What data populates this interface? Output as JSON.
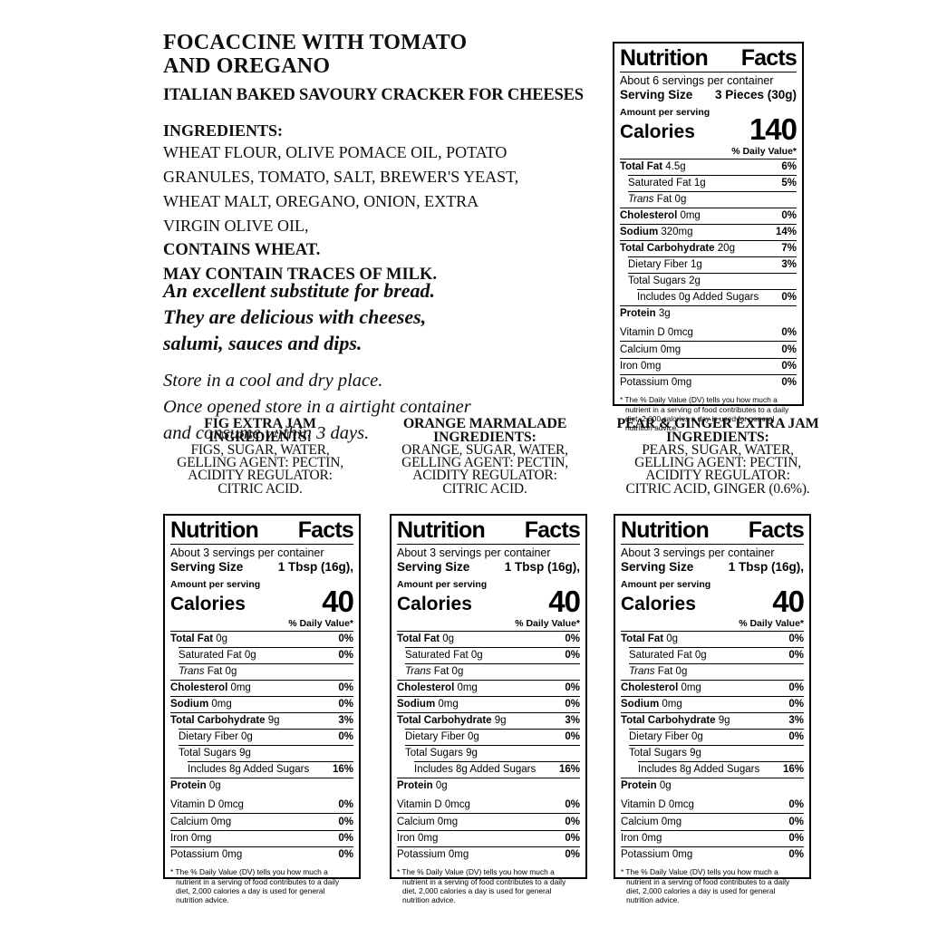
{
  "page": {
    "background": "#ffffff",
    "ink": "#000000"
  },
  "product": {
    "title_line1": "FOCACCINE WITH TOMATO",
    "title_line2": "AND OREGANO",
    "subtitle": "ITALIAN BAKED SAVOURY CRACKER FOR CHEESES",
    "ingredients_heading": "INGREDIENTS:",
    "ingredients_lines": [
      "WHEAT FLOUR, OLIVE POMACE OIL, POTATO",
      "GRANULES, TOMATO, SALT, BREWER'S YEAST,",
      "WHEAT MALT, OREGANO, ONION, EXTRA",
      "VIRGIN OLIVE OIL,"
    ],
    "allergen_line1": "CONTAINS WHEAT.",
    "allergen_line2": "MAY CONTAIN TRACES OF MILK."
  },
  "marketing": {
    "bold_lines": [
      "An excellent substitute for bread.",
      "They are delicious with cheeses,",
      "salumi, sauces and dips."
    ],
    "plain_lines": [
      "Store in a cool  and dry place.",
      "Once opened store in a airtight container",
      "and consume within 3 days."
    ]
  },
  "jams": [
    {
      "name": "FIG EXTRA JAM",
      "heading": "INGREDIENTS:",
      "lines": [
        "FIGS, SUGAR, WATER,",
        "GELLING AGENT: PECTIN,",
        "ACIDITY REGULATOR:",
        "CITRIC ACID."
      ]
    },
    {
      "name": "ORANGE MARMALADE",
      "heading": "INGREDIENTS:",
      "lines": [
        "ORANGE, SUGAR, WATER,",
        "GELLING AGENT: PECTIN,",
        "ACIDITY REGULATOR:",
        "CITRIC ACID."
      ]
    },
    {
      "name": "PEAR & GINGER EXTRA JAM",
      "heading": "INGREDIENTS:",
      "lines": [
        "PEARS, SUGAR, WATER,",
        "GELLING AGENT: PECTIN,",
        "ACIDITY REGULATOR:",
        "CITRIC ACID, GINGER (0.6%)."
      ]
    }
  ],
  "nutrition_panels": [
    {
      "product": "focaccine",
      "title": "Nutrition Facts",
      "servings": "About 6 servings per container",
      "serving_size_label": "Serving Size",
      "serving_size_value": "3 Pieces (30g)",
      "amount_per_serving": "Amount per serving",
      "calories_label": "Calories",
      "calories": "140",
      "daily_value_header": "% Daily Value*",
      "rows": [
        {
          "label": "Total Fat",
          "value": "4.5g",
          "dv": "6%",
          "em": "bold",
          "indent": 0
        },
        {
          "label": "Saturated Fat",
          "value": "1g",
          "dv": "5%",
          "em": "none",
          "indent": 1
        },
        {
          "label": "Trans Fat",
          "value": "0g",
          "dv": "",
          "em": "italic",
          "indent": 1
        },
        {
          "label": "Cholesterol",
          "value": "0mg",
          "dv": "0%",
          "em": "bold",
          "indent": 0
        },
        {
          "label": "Sodium",
          "value": "320mg",
          "dv": "14%",
          "em": "bold",
          "indent": 0
        },
        {
          "label": "Total Carbohydrate",
          "value": "20g",
          "dv": "7%",
          "em": "bold",
          "indent": 0
        },
        {
          "label": "Dietary Fiber",
          "value": "1g",
          "dv": "3%",
          "em": "none",
          "indent": 1
        },
        {
          "label": "Total Sugars",
          "value": "2g",
          "dv": "",
          "em": "none",
          "indent": 1
        },
        {
          "label": "Includes 0g Added Sugars",
          "value": "",
          "dv": "0%",
          "em": "none",
          "indent": 2
        },
        {
          "label": "Protein",
          "value": "3g",
          "dv": "",
          "em": "bold",
          "indent": 0
        }
      ],
      "vitamins": [
        {
          "label": "Vitamin D 0mcg",
          "dv": "0%"
        },
        {
          "label": "Calcium 0mg",
          "dv": "0%"
        },
        {
          "label": "Iron 0mg",
          "dv": "0%"
        },
        {
          "label": "Potassium 0mg",
          "dv": "0%"
        }
      ],
      "footnote": "* The %  Daily Value (DV) tells you how much a nutrient in a serving of food contributes to a daily diet, 2,000 calories a day is used for general nutrition advice."
    },
    {
      "product": "fig-extra-jam",
      "title": "Nutrition Facts",
      "servings": "About 3 servings per container",
      "serving_size_label": "Serving Size",
      "serving_size_value": "1 Tbsp (16g),",
      "amount_per_serving": "Amount per serving",
      "calories_label": "Calories",
      "calories": "40",
      "daily_value_header": "% Daily Value*",
      "rows": [
        {
          "label": "Total Fat",
          "value": "0g",
          "dv": "0%",
          "em": "bold",
          "indent": 0
        },
        {
          "label": "Saturated Fat",
          "value": "0g",
          "dv": "0%",
          "em": "none",
          "indent": 1
        },
        {
          "label": "Trans Fat",
          "value": "0g",
          "dv": "",
          "em": "italic",
          "indent": 1
        },
        {
          "label": "Cholesterol",
          "value": "0mg",
          "dv": "0%",
          "em": "bold",
          "indent": 0
        },
        {
          "label": "Sodium",
          "value": "0mg",
          "dv": "0%",
          "em": "bold",
          "indent": 0
        },
        {
          "label": "Total Carbohydrate",
          "value": "9g",
          "dv": "3%",
          "em": "bold",
          "indent": 0
        },
        {
          "label": "Dietary Fiber",
          "value": "0g",
          "dv": "0%",
          "em": "none",
          "indent": 1
        },
        {
          "label": "Total Sugars",
          "value": "9g",
          "dv": "",
          "em": "none",
          "indent": 1
        },
        {
          "label": "Includes 8g Added Sugars",
          "value": "",
          "dv": "16%",
          "em": "none",
          "indent": 2
        },
        {
          "label": "Protein",
          "value": "0g",
          "dv": "",
          "em": "bold",
          "indent": 0
        }
      ],
      "vitamins": [
        {
          "label": "Vitamin D 0mcg",
          "dv": "0%"
        },
        {
          "label": "Calcium 0mg",
          "dv": "0%"
        },
        {
          "label": "Iron 0mg",
          "dv": "0%"
        },
        {
          "label": "Potassium 0mg",
          "dv": "0%"
        }
      ],
      "footnote": "* The %  Daily Value (DV) tells you how much a nutrient in a serving of food contributes to a daily diet, 2,000 calories a day is used for general nutrition advice."
    },
    {
      "product": "orange-marmalade",
      "title": "Nutrition Facts",
      "servings": "About 3 servings per container",
      "serving_size_label": "Serving Size",
      "serving_size_value": "1 Tbsp (16g),",
      "amount_per_serving": "Amount per serving",
      "calories_label": "Calories",
      "calories": "40",
      "daily_value_header": "% Daily Value*",
      "rows": [
        {
          "label": "Total Fat",
          "value": "0g",
          "dv": "0%",
          "em": "bold",
          "indent": 0
        },
        {
          "label": "Saturated Fat",
          "value": "0g",
          "dv": "0%",
          "em": "none",
          "indent": 1
        },
        {
          "label": "Trans Fat",
          "value": "0g",
          "dv": "",
          "em": "italic",
          "indent": 1
        },
        {
          "label": "Cholesterol",
          "value": "0mg",
          "dv": "0%",
          "em": "bold",
          "indent": 0
        },
        {
          "label": "Sodium",
          "value": "0mg",
          "dv": "0%",
          "em": "bold",
          "indent": 0
        },
        {
          "label": "Total Carbohydrate",
          "value": "9g",
          "dv": "3%",
          "em": "bold",
          "indent": 0
        },
        {
          "label": "Dietary Fiber",
          "value": "0g",
          "dv": "0%",
          "em": "none",
          "indent": 1
        },
        {
          "label": "Total Sugars",
          "value": "9g",
          "dv": "",
          "em": "none",
          "indent": 1
        },
        {
          "label": "Includes 8g Added Sugars",
          "value": "",
          "dv": "16%",
          "em": "none",
          "indent": 2
        },
        {
          "label": "Protein",
          "value": "0g",
          "dv": "",
          "em": "bold",
          "indent": 0
        }
      ],
      "vitamins": [
        {
          "label": "Vitamin D 0mcg",
          "dv": "0%"
        },
        {
          "label": "Calcium 0mg",
          "dv": "0%"
        },
        {
          "label": "Iron 0mg",
          "dv": "0%"
        },
        {
          "label": "Potassium 0mg",
          "dv": "0%"
        }
      ],
      "footnote": "* The %  Daily Value (DV) tells you how much a nutrient in a serving of food contributes to a daily diet, 2,000 calories a day is used for general nutrition advice."
    },
    {
      "product": "pear-ginger-extra-jam",
      "title": "Nutrition Facts",
      "servings": "About 3 servings per container",
      "serving_size_label": "Serving Size",
      "serving_size_value": "1 Tbsp (16g),",
      "amount_per_serving": "Amount per serving",
      "calories_label": "Calories",
      "calories": "40",
      "daily_value_header": "% Daily Value*",
      "rows": [
        {
          "label": "Total Fat",
          "value": "0g",
          "dv": "0%",
          "em": "bold",
          "indent": 0
        },
        {
          "label": "Saturated Fat",
          "value": "0g",
          "dv": "0%",
          "em": "none",
          "indent": 1
        },
        {
          "label": "Trans Fat",
          "value": "0g",
          "dv": "",
          "em": "italic",
          "indent": 1
        },
        {
          "label": "Cholesterol",
          "value": "0mg",
          "dv": "0%",
          "em": "bold",
          "indent": 0
        },
        {
          "label": "Sodium",
          "value": "0mg",
          "dv": "0%",
          "em": "bold",
          "indent": 0
        },
        {
          "label": "Total Carbohydrate",
          "value": "9g",
          "dv": "3%",
          "em": "bold",
          "indent": 0
        },
        {
          "label": "Dietary Fiber",
          "value": "0g",
          "dv": "0%",
          "em": "none",
          "indent": 1
        },
        {
          "label": "Total Sugars",
          "value": "9g",
          "dv": "",
          "em": "none",
          "indent": 1
        },
        {
          "label": "Includes 8g Added Sugars",
          "value": "",
          "dv": "16%",
          "em": "none",
          "indent": 2
        },
        {
          "label": "Protein",
          "value": "0g",
          "dv": "",
          "em": "bold",
          "indent": 0
        }
      ],
      "vitamins": [
        {
          "label": "Vitamin D 0mcg",
          "dv": "0%"
        },
        {
          "label": "Calcium 0mg",
          "dv": "0%"
        },
        {
          "label": "Iron 0mg",
          "dv": "0%"
        },
        {
          "label": "Potassium 0mg",
          "dv": "0%"
        }
      ],
      "footnote": "* The %  Daily Value (DV) tells you how much a nutrient in a serving of food contributes to a daily diet, 2,000 calories a day is used for general nutrition advice."
    }
  ]
}
